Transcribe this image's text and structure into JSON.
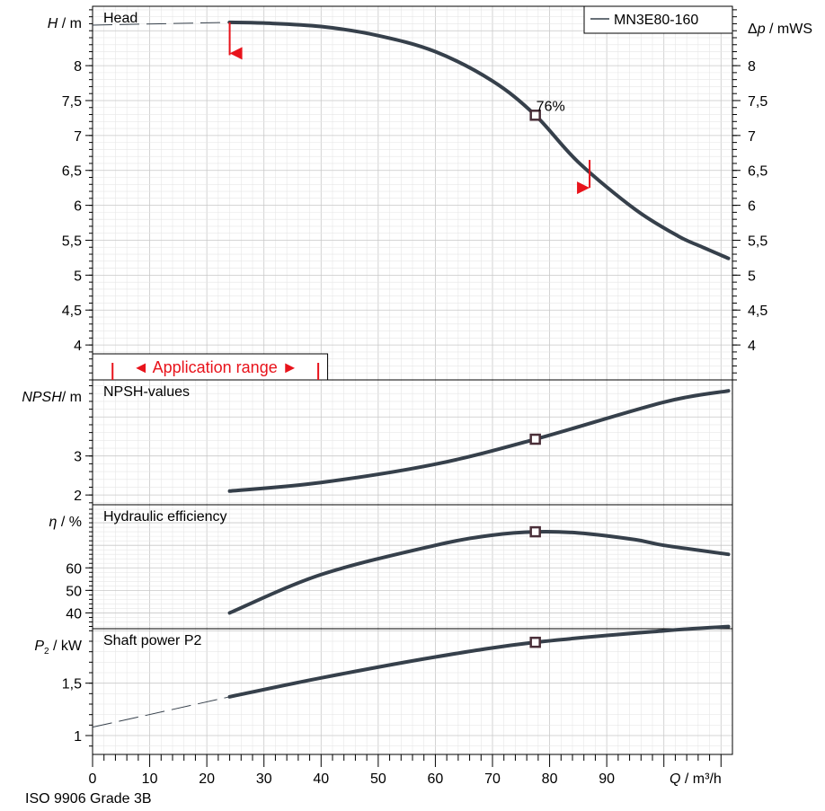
{
  "chart_data": {
    "type": "line",
    "legend": {
      "label": "MN3E80-160",
      "placement": "top-right"
    },
    "x": {
      "label": "Q / m³/h",
      "range": [
        0,
        112
      ],
      "ticks": [
        0,
        10,
        20,
        30,
        40,
        50,
        60,
        70,
        80,
        90
      ]
    },
    "duty_point": {
      "q": 77.5,
      "efficiency_label": "76%"
    },
    "footer": "ISO 9906 Grade 3B",
    "panels": [
      {
        "key": "head",
        "title": "Head",
        "ylabel_var": "H",
        "ylabel_unit": " / m",
        "ylabel_right": "Δp / mWS",
        "ylim": [
          3.5,
          8.85
        ],
        "ticks": [
          4,
          4.5,
          5,
          5.5,
          6,
          6.5,
          7,
          7.5,
          8
        ],
        "tick_labels": [
          "4",
          "4,5",
          "5",
          "5,5",
          "6",
          "6,5",
          "7",
          "7,5",
          "8"
        ],
        "series": [
          {
            "x": [
              24,
              30,
              40,
              50,
              60,
              70,
              77.5,
              85,
              95,
              102.5,
              106.5,
              111.3
            ],
            "y": [
              8.62,
              8.61,
              8.56,
              8.43,
              8.2,
              7.78,
              7.29,
              6.62,
              5.94,
              5.56,
              5.41,
              5.24
            ]
          }
        ],
        "extension": {
          "x": [
            0,
            24
          ],
          "y": [
            8.58,
            8.62
          ]
        },
        "duty_y": 7.29,
        "range_markers": [
          {
            "x": 24,
            "y_from": 8.62,
            "y_to": 8.15
          },
          {
            "x": 87,
            "y_from": 6.65,
            "y_to": 6.25
          }
        ],
        "application_range": {
          "label": "◄ Application range ►",
          "from_q": 3.5,
          "to_q": 39.5
        }
      },
      {
        "key": "npsh",
        "title": "NPSH-values",
        "ylabel_var": "NPSH",
        "ylabel_unit": "/ m",
        "ylim": [
          1.75,
          4.95
        ],
        "ticks": [
          2,
          3
        ],
        "tick_labels": [
          "2",
          "3"
        ],
        "series": [
          {
            "x": [
              24,
              40,
              60,
              77.5,
              100,
              111.3
            ],
            "y": [
              2.1,
              2.32,
              2.79,
              3.43,
              4.38,
              4.67
            ]
          }
        ],
        "duty_y": 3.43
      },
      {
        "key": "eta",
        "title": "Hydraulic efficiency",
        "ylabel_var": "η",
        "ylabel_unit": " / %",
        "ylim": [
          33,
          88
        ],
        "ticks": [
          40,
          50,
          60
        ],
        "tick_labels": [
          "40",
          "50",
          "60"
        ],
        "series": [
          {
            "x": [
              24,
              40,
              60,
              70,
              77.5,
              85,
              95,
              100,
              111.3
            ],
            "y": [
              40,
              57,
              70,
              74.5,
              76,
              75.5,
              72.5,
              70,
              66
            ]
          }
        ],
        "duty_y": 76
      },
      {
        "key": "p2",
        "title": "Shaft power P2",
        "ylabel_var": "P",
        "ylabel_sub": "2",
        "ylabel_unit": " / kW",
        "ylim": [
          0.82,
          2.02
        ],
        "ticks": [
          1,
          1.5
        ],
        "tick_labels": [
          "1",
          "1,5"
        ],
        "series": [
          {
            "x": [
              24,
              40,
              60,
              77.5,
              100,
              111.3
            ],
            "y": [
              1.37,
              1.55,
              1.75,
              1.89,
              2.0,
              2.04
            ]
          }
        ],
        "extension": {
          "x": [
            0,
            24
          ],
          "y": [
            1.08,
            1.37
          ]
        },
        "duty_y": 1.89
      }
    ]
  }
}
